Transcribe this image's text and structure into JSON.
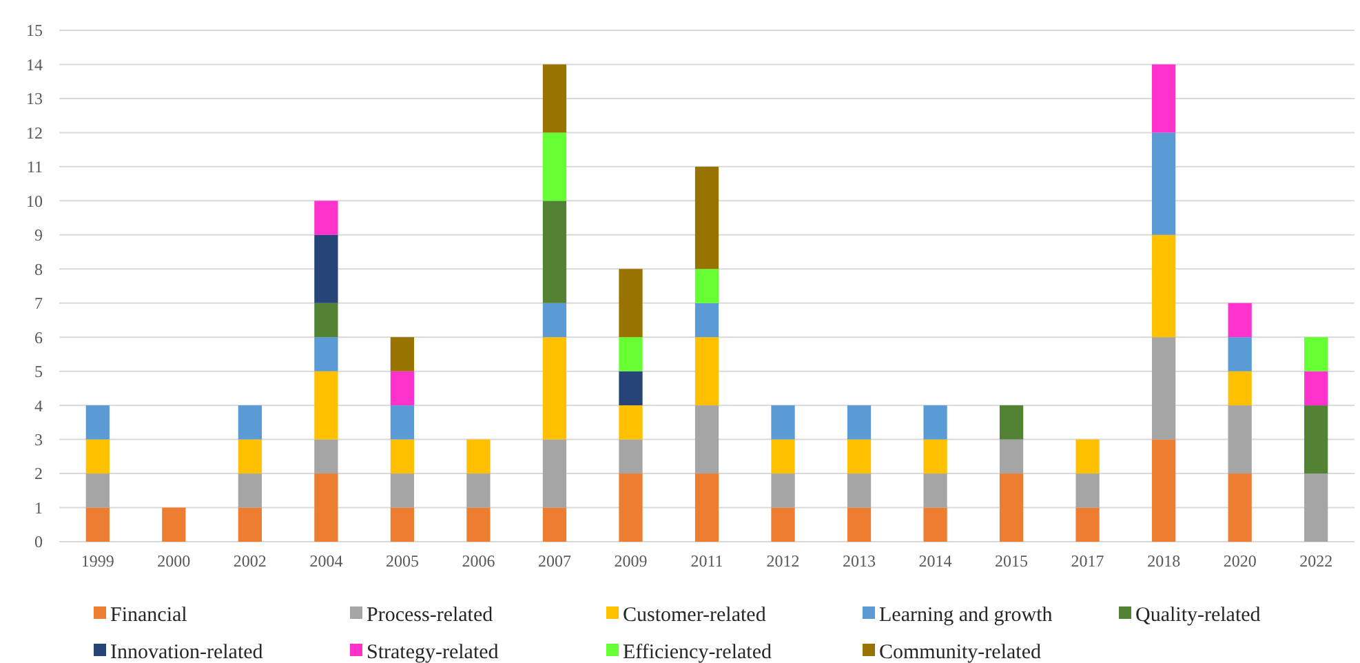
{
  "chart_data": {
    "type": "bar",
    "stacked": true,
    "categories": [
      "1999",
      "2000",
      "2002",
      "2004",
      "2005",
      "2006",
      "2007",
      "2009",
      "2011",
      "2012",
      "2013",
      "2014",
      "2015",
      "2017",
      "2018",
      "2020",
      "2022"
    ],
    "series": [
      {
        "name": "Financial",
        "color": "#ed7d31",
        "values": [
          1,
          1,
          1,
          2,
          1,
          1,
          1,
          2,
          2,
          1,
          1,
          1,
          2,
          1,
          3,
          2,
          0
        ]
      },
      {
        "name": "Process-related",
        "color": "#a5a5a5",
        "values": [
          1,
          0,
          1,
          1,
          1,
          1,
          2,
          1,
          2,
          1,
          1,
          1,
          1,
          1,
          3,
          2,
          2
        ]
      },
      {
        "name": "Customer-related",
        "color": "#ffc000",
        "values": [
          1,
          0,
          1,
          2,
          1,
          1,
          3,
          1,
          2,
          1,
          1,
          1,
          0,
          1,
          3,
          1,
          0
        ]
      },
      {
        "name": "Learning and growth",
        "color": "#5b9bd5",
        "values": [
          1,
          0,
          1,
          1,
          1,
          0,
          1,
          0,
          1,
          1,
          1,
          1,
          0,
          0,
          3,
          1,
          0
        ]
      },
      {
        "name": "Quality-related",
        "color": "#548235",
        "values": [
          0,
          0,
          0,
          1,
          0,
          0,
          3,
          0,
          0,
          0,
          0,
          0,
          1,
          0,
          0,
          0,
          2
        ]
      },
      {
        "name": "Innovation-related",
        "color": "#264478",
        "values": [
          0,
          0,
          0,
          2,
          0,
          0,
          0,
          1,
          0,
          0,
          0,
          0,
          0,
          0,
          0,
          0,
          0
        ]
      },
      {
        "name": "Strategy-related",
        "color": "#ff33cc",
        "values": [
          0,
          0,
          0,
          1,
          1,
          0,
          0,
          0,
          0,
          0,
          0,
          0,
          0,
          0,
          2,
          1,
          1
        ]
      },
      {
        "name": "Efficiency-related",
        "color": "#66ff33",
        "values": [
          0,
          0,
          0,
          0,
          0,
          0,
          2,
          1,
          1,
          0,
          0,
          0,
          0,
          0,
          0,
          0,
          1
        ]
      },
      {
        "name": "Community-related",
        "color": "#997300",
        "values": [
          0,
          0,
          0,
          0,
          1,
          0,
          2,
          2,
          3,
          0,
          0,
          0,
          0,
          0,
          0,
          0,
          0
        ]
      }
    ],
    "ylim": [
      0,
      15
    ],
    "yticks": [
      0,
      1,
      2,
      3,
      4,
      5,
      6,
      7,
      8,
      9,
      10,
      11,
      12,
      13,
      14,
      15
    ],
    "grid": "y",
    "legend": "bottom"
  }
}
